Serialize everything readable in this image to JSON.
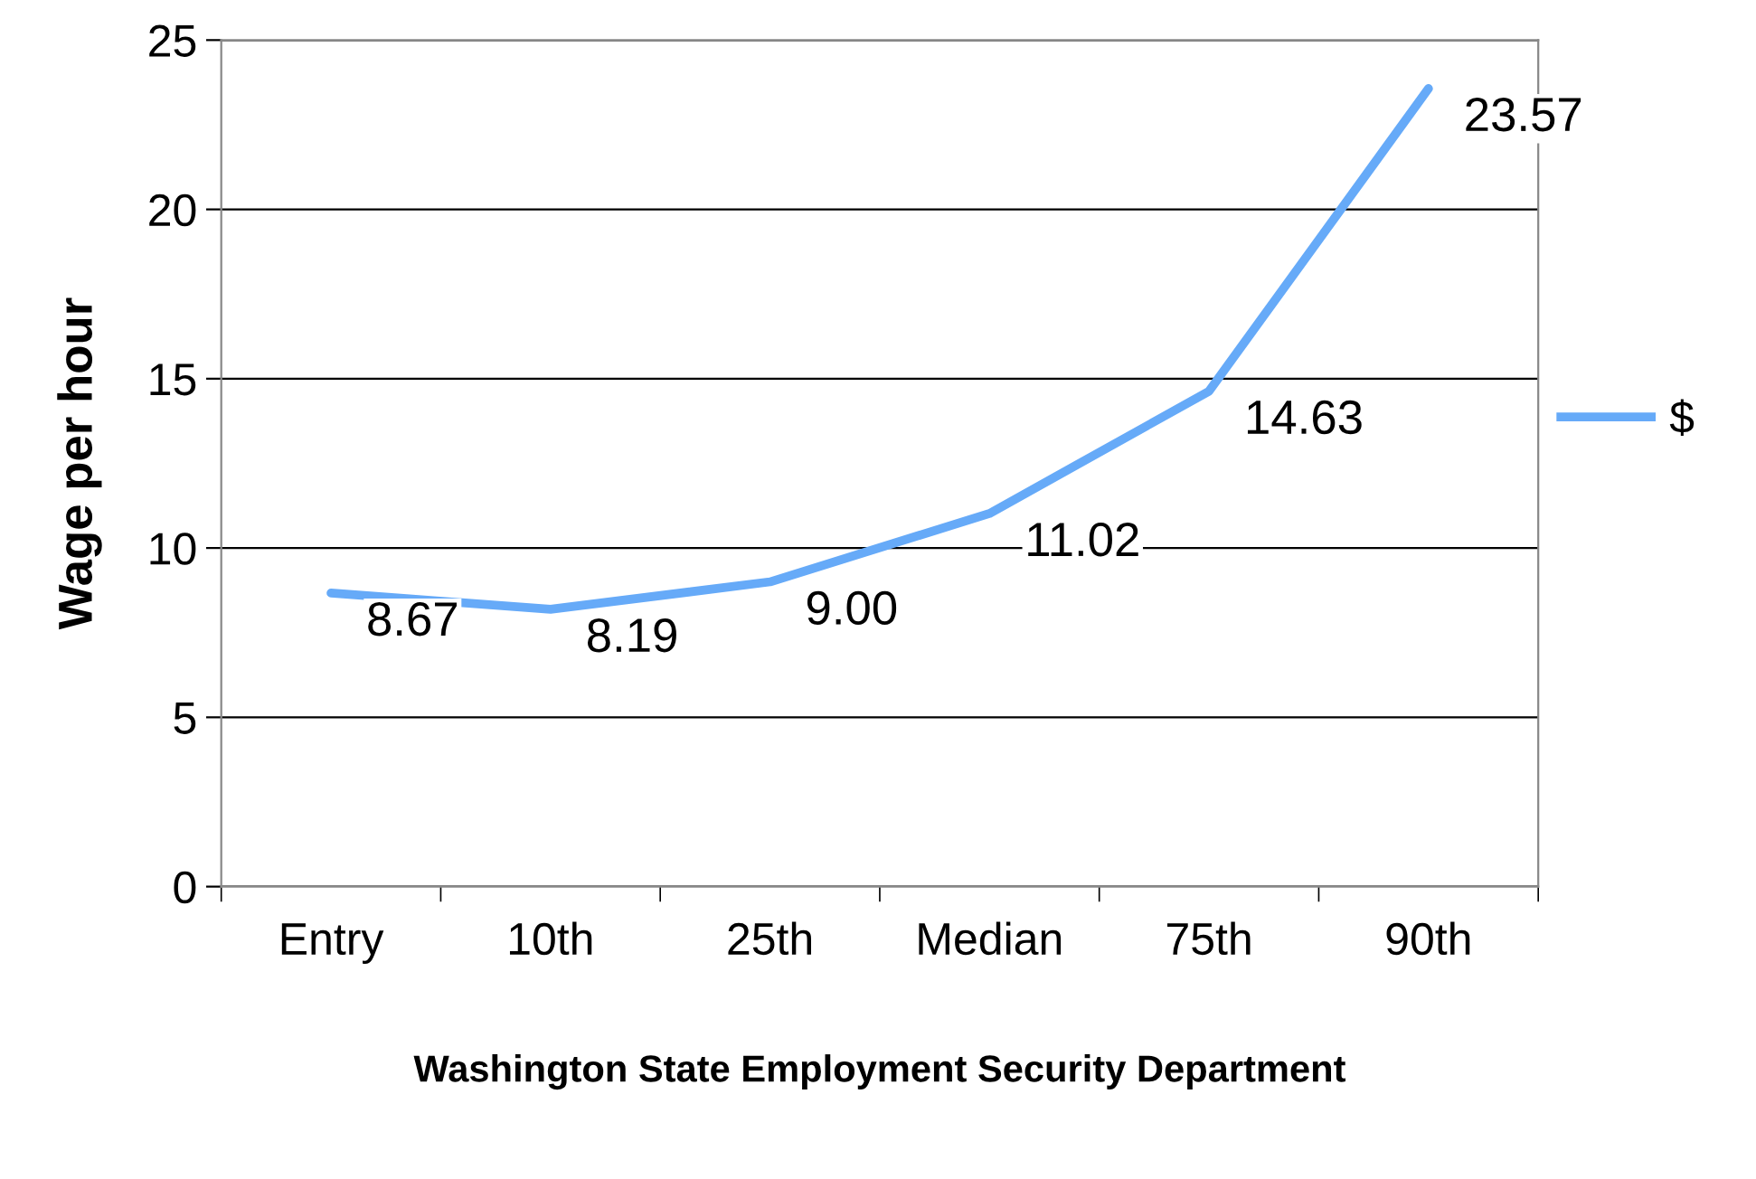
{
  "chart_data": {
    "type": "line",
    "xlabel": "Washington State Employment Security Department",
    "ylabel": "Wage per hour",
    "categories": [
      "Entry",
      "10th",
      "25th",
      "Median",
      "75th",
      "90th"
    ],
    "series": [
      {
        "name": "$",
        "color": "#66aaf8",
        "values": [
          8.67,
          8.19,
          9.0,
          11.02,
          14.63,
          23.57
        ],
        "value_labels": [
          "8.67",
          "8.19",
          "9.00",
          "11.02",
          "14.63",
          "23.57"
        ]
      }
    ],
    "ylim": [
      0,
      25
    ],
    "yticks": [
      0,
      5,
      10,
      15,
      20,
      25
    ],
    "grid": "y",
    "legend": "right",
    "marker": "none",
    "line_style": "solid"
  }
}
